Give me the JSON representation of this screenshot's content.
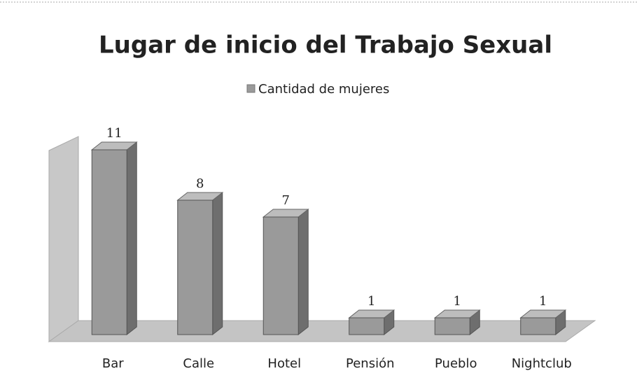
{
  "chart_data": {
    "type": "bar3d",
    "title": "Lugar de inicio del Trabajo Sexual",
    "categories": [
      "Bar",
      "Calle",
      "Hotel",
      "Pensión",
      "Pueblo",
      "Nightclub"
    ],
    "series": [
      {
        "name": "Cantidad de mujeres",
        "color": "#9a9a9a",
        "values": [
          11,
          8,
          7,
          1,
          1,
          1
        ]
      }
    ],
    "ylim": [
      0,
      12
    ]
  }
}
